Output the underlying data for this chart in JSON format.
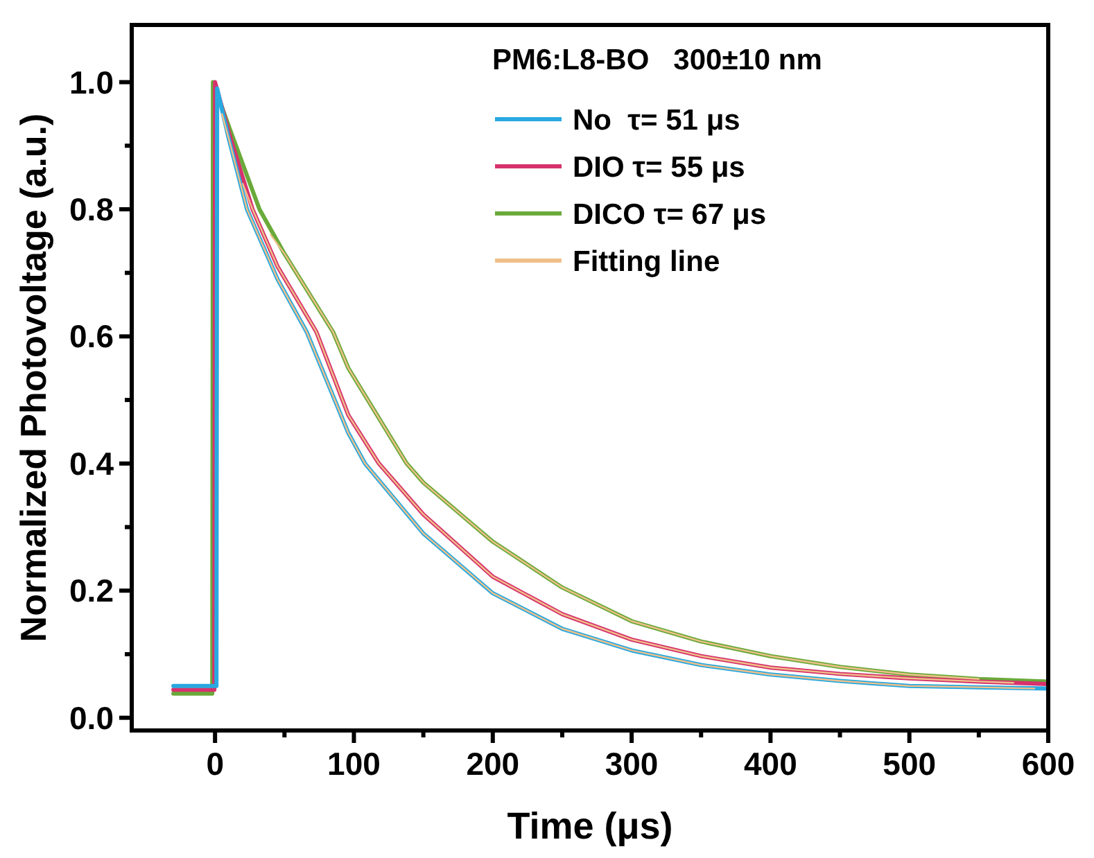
{
  "chart_data": {
    "type": "line",
    "xlabel": "Time (μs)",
    "ylabel": "Normalized Photovoltage (a.u.)",
    "legend_title": "PM6:L8-BO   300±10 nm",
    "legend": "top right",
    "xlim": [
      -60,
      600
    ],
    "ylim": [
      -0.02,
      1.09
    ],
    "xticks": [
      0,
      {
        "value": 50,
        "label": null
      },
      100,
      {
        "value": 150,
        "label": null
      },
      200,
      {
        "value": 250,
        "label": null
      },
      300,
      {
        "value": 350,
        "label": null
      },
      400,
      {
        "value": 450,
        "label": null
      },
      500,
      {
        "value": 550,
        "label": null
      },
      600
    ],
    "yticks": [
      {
        "value": 0,
        "label": "0.0"
      },
      {
        "value": 0.1,
        "label": null
      },
      0.2,
      {
        "value": 0.3,
        "label": null
      },
      0.4,
      {
        "value": 0.5,
        "label": null
      },
      0.6,
      {
        "value": 0.7,
        "label": null
      },
      0.8,
      {
        "value": 0.9,
        "label": null
      },
      {
        "value": 1,
        "label": "1.0"
      }
    ],
    "series": [
      {
        "name": "No  τ= 51 μs",
        "color": "#29a9e0",
        "x": [
          -30,
          1,
          1.5,
          10,
          23,
          45,
          66,
          96,
          108,
          150,
          200,
          250,
          300,
          350,
          400,
          450,
          500,
          550,
          600
        ],
        "values": [
          0.05,
          0.05,
          0.99,
          0.91,
          0.8,
          0.69,
          0.607,
          0.448,
          0.4,
          0.29,
          0.196,
          0.14,
          0.106,
          0.083,
          0.068,
          0.058,
          0.05,
          0.048,
          0.046
        ]
      },
      {
        "name": "DIO τ= 55 μs",
        "color": "#d6336c",
        "x": [
          -30,
          -0.5,
          0,
          10,
          27,
          45,
          73,
          96,
          118,
          150,
          200,
          250,
          300,
          350,
          400,
          450,
          500,
          550,
          600
        ],
        "values": [
          0.044,
          0.044,
          1.0,
          0.92,
          0.8,
          0.71,
          0.607,
          0.476,
          0.4,
          0.32,
          0.222,
          0.163,
          0.123,
          0.097,
          0.079,
          0.069,
          0.062,
          0.057,
          0.053
        ]
      },
      {
        "name": "DICO τ= 67 μs",
        "color": "#6aaa3a",
        "x": [
          -30,
          -2,
          -1.5,
          10,
          32,
          50,
          85,
          96,
          138,
          150,
          200,
          250,
          300,
          350,
          400,
          450,
          500,
          550,
          600
        ],
        "values": [
          0.038,
          0.038,
          1.0,
          0.93,
          0.8,
          0.73,
          0.607,
          0.55,
          0.4,
          0.37,
          0.277,
          0.205,
          0.152,
          0.12,
          0.097,
          0.08,
          0.068,
          0.061,
          0.057
        ]
      },
      {
        "name": "Fitting line",
        "color": "#f0c08a",
        "x": [
          5,
          10,
          23,
          45,
          66,
          96,
          108,
          150,
          200,
          250,
          300,
          350,
          400,
          450,
          500,
          550,
          590
        ],
        "values": [
          0.95,
          0.91,
          0.8,
          0.69,
          0.607,
          0.448,
          0.4,
          0.29,
          0.196,
          0.14,
          0.106,
          0.083,
          0.068,
          0.058,
          0.05,
          0.048,
          0.046
        ]
      },
      {
        "color": "#f0c08a",
        "x": [
          20,
          27,
          45,
          73,
          96,
          118,
          150,
          200,
          250,
          300,
          350,
          400,
          450,
          500,
          550,
          575
        ],
        "values": [
          0.84,
          0.8,
          0.71,
          0.607,
          0.476,
          0.4,
          0.32,
          0.222,
          0.163,
          0.123,
          0.097,
          0.079,
          0.069,
          0.062,
          0.057,
          0.055
        ]
      },
      {
        "color": "#f0c08a",
        "x": [
          40,
          50,
          85,
          96,
          138,
          150,
          200,
          250,
          300,
          350,
          400,
          450,
          500,
          550
        ],
        "values": [
          0.76,
          0.73,
          0.607,
          0.55,
          0.4,
          0.37,
          0.277,
          0.205,
          0.152,
          0.12,
          0.097,
          0.08,
          0.068,
          0.061
        ]
      }
    ]
  }
}
